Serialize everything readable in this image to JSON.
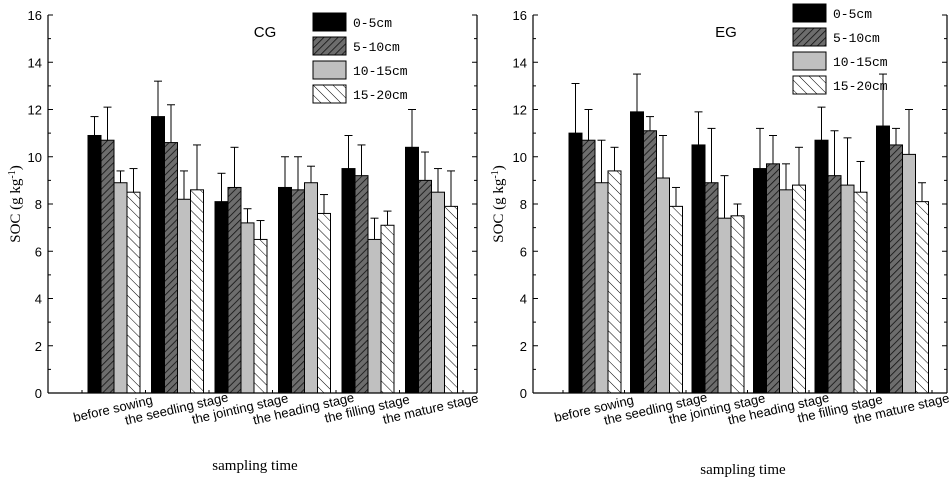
{
  "chart_data": [
    {
      "type": "bar",
      "title": "CG",
      "xlabel": "sampling time",
      "ylabel": "SOC (g kg",
      "ylabel_sup": "-1",
      "ylabel_close": ")",
      "ylim": [
        0,
        16
      ],
      "yticks": [
        "0",
        "2",
        "4",
        "6",
        "8",
        "10",
        "12",
        "14",
        "16"
      ],
      "categories": [
        "before sowing",
        "the seedling stage",
        "the jointing stage",
        "the heading stage",
        "the filling stage",
        "the mature stage"
      ],
      "series": [
        {
          "name": "0-5cm",
          "values": [
            10.9,
            11.7,
            8.1,
            8.7,
            9.5,
            10.4
          ],
          "errors": [
            0.8,
            1.5,
            1.2,
            1.3,
            1.4,
            1.6
          ]
        },
        {
          "name": "5-10cm",
          "values": [
            10.7,
            10.6,
            8.7,
            8.6,
            9.2,
            9.0
          ],
          "errors": [
            1.4,
            1.6,
            1.7,
            1.4,
            1.3,
            1.2
          ]
        },
        {
          "name": "10-15cm",
          "values": [
            8.9,
            8.2,
            7.2,
            8.9,
            6.5,
            8.5
          ],
          "errors": [
            0.5,
            1.2,
            0.6,
            0.7,
            0.9,
            1.0
          ]
        },
        {
          "name": "15-20cm",
          "values": [
            8.5,
            8.6,
            6.5,
            7.6,
            7.1,
            7.9
          ],
          "errors": [
            1.0,
            1.9,
            0.8,
            0.8,
            0.6,
            1.5
          ]
        }
      ]
    },
    {
      "type": "bar",
      "title": "EG",
      "xlabel": "sampling time",
      "ylabel": "SOC (g kg",
      "ylabel_sup": "-1",
      "ylabel_close": ")",
      "ylim": [
        0,
        16
      ],
      "yticks": [
        "0",
        "2",
        "4",
        "6",
        "8",
        "10",
        "12",
        "14",
        "16"
      ],
      "categories": [
        "before sowing",
        "the seedling stage",
        "the jointing stage",
        "the heading stage",
        "the filling stage",
        "the mature stage"
      ],
      "series": [
        {
          "name": "0-5cm",
          "values": [
            11.0,
            11.9,
            10.5,
            9.5,
            10.7,
            11.3
          ],
          "errors": [
            2.1,
            1.6,
            1.4,
            1.7,
            1.4,
            2.2
          ]
        },
        {
          "name": "5-10cm",
          "values": [
            10.7,
            11.1,
            8.9,
            9.7,
            9.2,
            10.5
          ],
          "errors": [
            1.3,
            0.6,
            2.3,
            1.2,
            1.9,
            0.7
          ]
        },
        {
          "name": "10-15cm",
          "values": [
            8.9,
            9.1,
            7.4,
            8.6,
            8.8,
            10.1
          ],
          "errors": [
            1.8,
            1.8,
            1.8,
            1.1,
            2.0,
            1.9
          ]
        },
        {
          "name": "15-20cm",
          "values": [
            9.4,
            7.9,
            7.5,
            8.8,
            8.5,
            8.1
          ],
          "errors": [
            1.0,
            0.8,
            0.5,
            1.6,
            1.3,
            0.8
          ]
        }
      ]
    }
  ],
  "colors": {
    "s0": "#000000",
    "s1": "#6d6d6d",
    "s2": "#c0c0c0",
    "s3": "#ffffff"
  }
}
